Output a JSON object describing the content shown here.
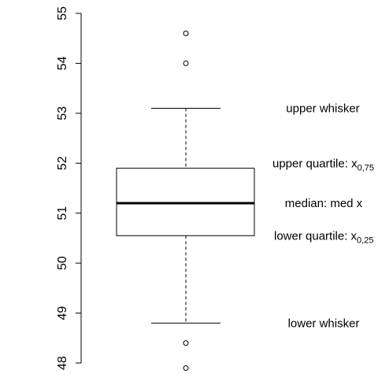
{
  "chart_data": {
    "type": "boxplot",
    "title": "",
    "xlabel": "",
    "ylabel": "",
    "ylim": [
      48,
      55
    ],
    "yticks": [
      48,
      49,
      50,
      51,
      52,
      53,
      54,
      55
    ],
    "grid": false,
    "box": {
      "lower_whisker": 48.8,
      "lower_quartile": 50.55,
      "median": 51.2,
      "upper_quartile": 51.9,
      "upper_whisker": 53.1
    },
    "outliers": [
      47.9,
      48.4,
      54.0,
      54.6
    ],
    "annotations": {
      "upper_whisker": {
        "text": "upper whisker",
        "y": 53.1
      },
      "upper_quartile": {
        "text": "upper quartile: x",
        "sub": "0,75",
        "y": 52.0
      },
      "median": {
        "text": "median: med x",
        "y": 51.2
      },
      "lower_quartile": {
        "text": "lower quartile: x",
        "sub": "0,25",
        "y": 50.55
      },
      "lower_whisker": {
        "text": "lower whisker",
        "y": 48.8
      }
    }
  }
}
